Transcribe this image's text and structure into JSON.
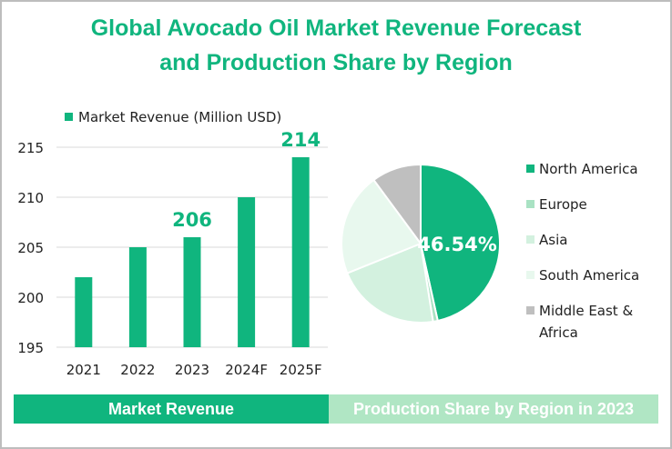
{
  "title_line1": "Global Avocado Oil Market Revenue Forecast",
  "title_line2": "and Production Share by Region",
  "colors": {
    "accent": "#10b57e",
    "band_right": "#b0e6c4"
  },
  "chart_data": [
    {
      "type": "bar",
      "title": "Market Revenue",
      "legend": "Market Revenue (Million USD)",
      "legend_position": "top",
      "categories": [
        "2021",
        "2022",
        "2023",
        "2024F",
        "2025F"
      ],
      "values": [
        202,
        205,
        206,
        210,
        214
      ],
      "data_labels": {
        "2023": "206",
        "2025F": "214"
      },
      "yticks": [
        "195",
        "200",
        "205",
        "210",
        "215"
      ],
      "ylim": [
        195,
        215
      ],
      "grid": true,
      "color": "#10b57e"
    },
    {
      "type": "pie",
      "title": "Production Share by Region in 2023",
      "legend_position": "right",
      "slices": [
        {
          "name": "North America",
          "value": 46.54,
          "color": "#10b57e"
        },
        {
          "name": "Europe",
          "value": 0.96,
          "color": "#a9e2c3"
        },
        {
          "name": "Asia",
          "value": 21.4,
          "color": "#d3f1df"
        },
        {
          "name": "South America",
          "value": 21.0,
          "color": "#e8f8ee"
        },
        {
          "name": "Middle East & Africa",
          "value": 10.1,
          "color": "#bfbfbf"
        }
      ],
      "data_label": "46.54%"
    }
  ]
}
